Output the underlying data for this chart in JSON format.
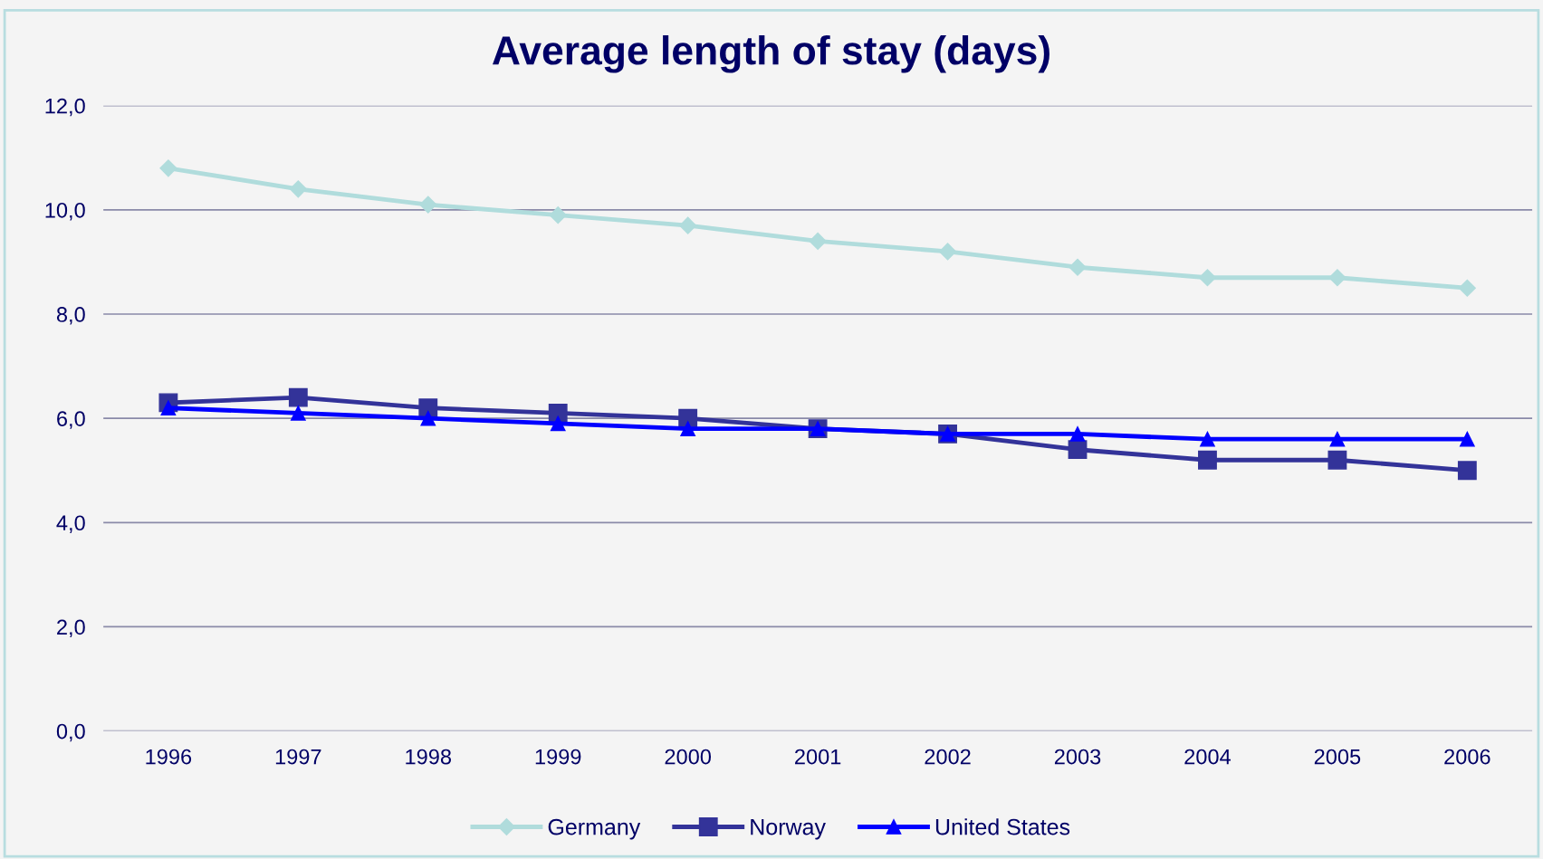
{
  "chart_data": {
    "type": "line",
    "title": "Average length of stay (days)",
    "categories": [
      "1996",
      "1997",
      "1998",
      "1999",
      "2000",
      "2001",
      "2002",
      "2003",
      "2004",
      "2005",
      "2006"
    ],
    "series": [
      {
        "name": "Germany",
        "color": "#b0dcdc",
        "marker": "diamond",
        "values": [
          10.8,
          10.4,
          10.1,
          9.9,
          9.7,
          9.4,
          9.2,
          8.9,
          8.7,
          8.7,
          8.5
        ]
      },
      {
        "name": "Norway",
        "color": "#333399",
        "marker": "square",
        "values": [
          6.3,
          6.4,
          6.2,
          6.1,
          6.0,
          5.8,
          5.7,
          5.4,
          5.2,
          5.2,
          5.0
        ]
      },
      {
        "name": "United States",
        "color": "#0000ff",
        "marker": "triangle",
        "values": [
          6.2,
          6.1,
          6.0,
          5.9,
          5.8,
          5.8,
          5.7,
          5.7,
          5.6,
          5.6,
          5.6
        ]
      }
    ],
    "ylim": [
      0,
      12
    ],
    "yticks": [
      {
        "value": 0,
        "label": "0,0"
      },
      {
        "value": 2,
        "label": "2,0"
      },
      {
        "value": 4,
        "label": "4,0"
      },
      {
        "value": 6,
        "label": "6,0"
      },
      {
        "value": 8,
        "label": "8,0"
      },
      {
        "value": 10,
        "label": "10,0"
      },
      {
        "value": 12,
        "label": "12,0"
      }
    ],
    "grid": "y",
    "legend": "bottom",
    "line_style": "solid"
  }
}
